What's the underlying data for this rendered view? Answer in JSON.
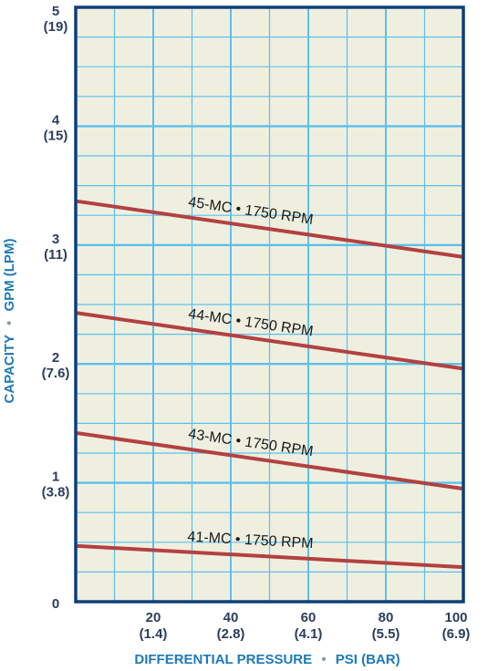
{
  "chart_data": {
    "type": "line",
    "xlabel": "DIFFERENTIAL PRESSURE",
    "xlabel_unit": "PSI (BAR)",
    "ylabel": "CAPACITY",
    "ylabel_unit": "GPM (LPM)",
    "separator": "•",
    "xlim": [
      0,
      100
    ],
    "ylim": [
      0,
      5
    ],
    "grid": true,
    "x_ticks": [
      {
        "value": 20,
        "label": "20",
        "sub": "(1.4)"
      },
      {
        "value": 40,
        "label": "40",
        "sub": "(2.8)"
      },
      {
        "value": 60,
        "label": "60",
        "sub": "(4.1)"
      },
      {
        "value": 80,
        "label": "80",
        "sub": "(5.5)"
      },
      {
        "value": 100,
        "label": "100",
        "sub": "(6.9)"
      }
    ],
    "y_ticks": [
      {
        "value": 0,
        "label": "0",
        "sub": ""
      },
      {
        "value": 1,
        "label": "1",
        "sub": "(3.8)"
      },
      {
        "value": 2,
        "label": "2",
        "sub": "(7.6)"
      },
      {
        "value": 3,
        "label": "3",
        "sub": "(11)"
      },
      {
        "value": 4,
        "label": "4",
        "sub": "(15)"
      },
      {
        "value": 5,
        "label": "5",
        "sub": "(19)"
      }
    ],
    "series": [
      {
        "name": "45-MC • 1750 RPM",
        "x": [
          0,
          100
        ],
        "y": [
          3.37,
          2.9
        ]
      },
      {
        "name": "44-MC • 1750 RPM",
        "x": [
          0,
          100
        ],
        "y": [
          2.43,
          1.96
        ]
      },
      {
        "name": "43-MC • 1750 RPM",
        "x": [
          0,
          100
        ],
        "y": [
          1.42,
          0.95
        ]
      },
      {
        "name": "41-MC • 1750 RPM",
        "x": [
          0,
          100
        ],
        "y": [
          0.47,
          0.29
        ]
      }
    ],
    "colors": {
      "plot_background": "#efefe0",
      "grid_line": "#5cc0ec",
      "axis_line": "#0e3f78",
      "series_line": "#b34141",
      "tick_text": "#2b3e5c",
      "axis_title": "#1c7ab8",
      "separator_dot": "#8a9aa8"
    }
  }
}
